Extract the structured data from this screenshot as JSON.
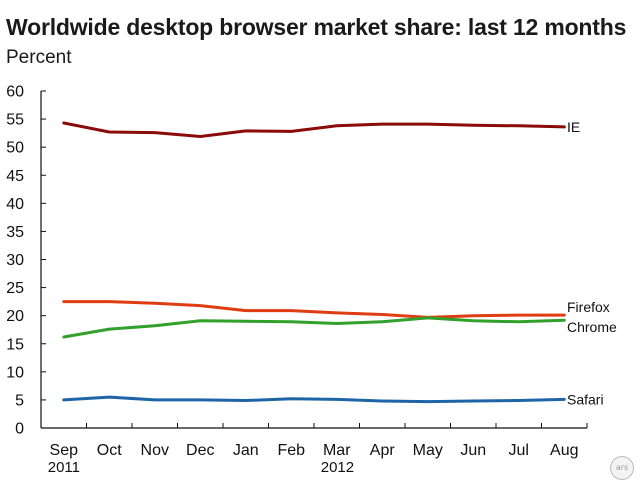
{
  "title": "Worldwide desktop browser market share: last 12 months",
  "subtitle": "Percent",
  "logo_text": "ars",
  "chart_data": {
    "type": "line",
    "categories": [
      "Sep",
      "Oct",
      "Nov",
      "Dec",
      "Jan",
      "Feb",
      "Mar",
      "Apr",
      "May",
      "Jun",
      "Jul",
      "Aug"
    ],
    "year_labels": [
      "2011",
      "",
      "",
      "",
      "",
      "",
      "2012",
      "",
      "",
      "",
      "",
      ""
    ],
    "ylim": [
      0,
      60
    ],
    "yticks": [
      0,
      5,
      10,
      15,
      20,
      25,
      30,
      35,
      40,
      45,
      50,
      55,
      60
    ],
    "legend": "direct labels at right end of each line",
    "grid": false,
    "series": [
      {
        "name": "IE",
        "color": "#8b0a0a",
        "values": [
          54.3,
          52.7,
          52.6,
          51.9,
          52.9,
          52.8,
          53.8,
          54.1,
          54.1,
          53.9,
          53.8,
          53.6
        ]
      },
      {
        "name": "Firefox",
        "color": "#e03c12",
        "values": [
          22.5,
          22.5,
          22.2,
          21.8,
          20.9,
          20.9,
          20.5,
          20.2,
          19.7,
          20.0,
          20.1,
          20.1
        ]
      },
      {
        "name": "Chrome",
        "color": "#32a02c",
        "values": [
          16.2,
          17.6,
          18.2,
          19.1,
          19.0,
          18.9,
          18.6,
          18.9,
          19.6,
          19.1,
          18.9,
          19.2
        ]
      },
      {
        "name": "Safari",
        "color": "#1f64a6",
        "values": [
          5.0,
          5.5,
          5.0,
          5.0,
          4.9,
          5.2,
          5.1,
          4.8,
          4.7,
          4.8,
          4.9,
          5.1
        ]
      }
    ]
  }
}
